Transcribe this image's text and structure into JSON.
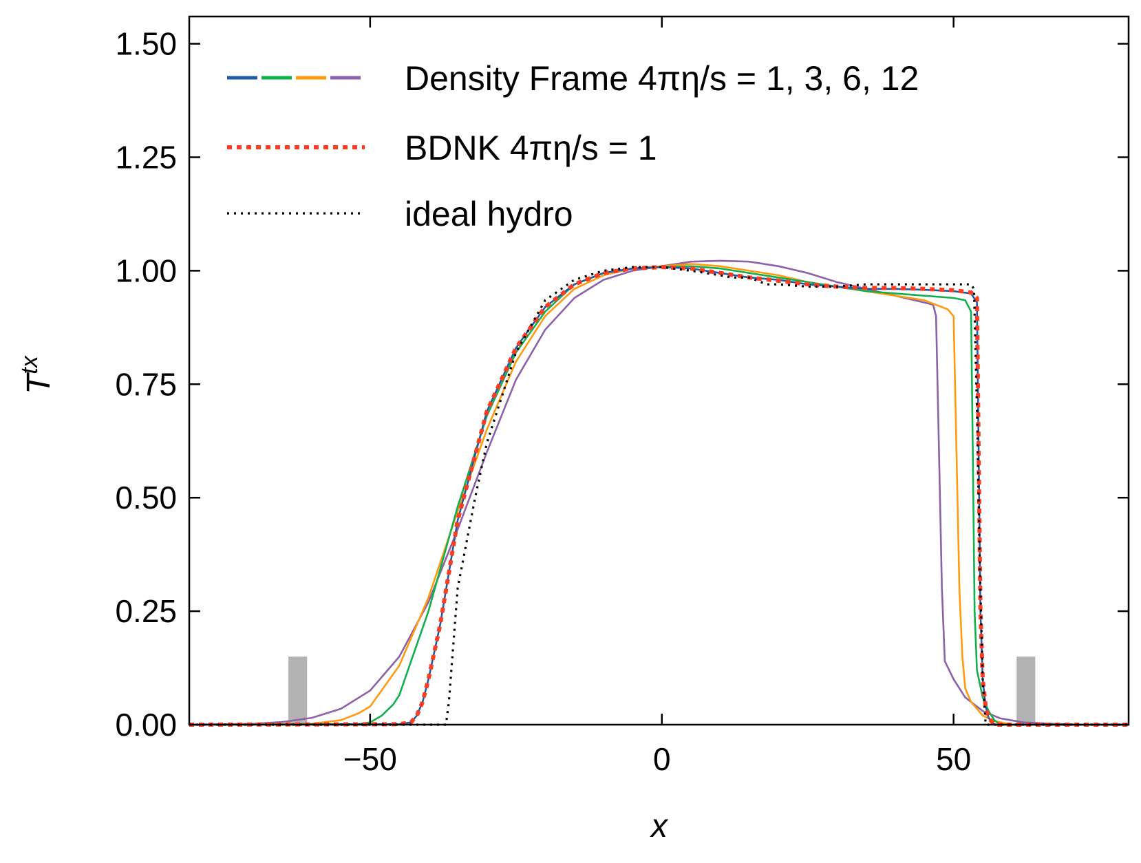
{
  "chart_data": {
    "type": "line",
    "title": "",
    "xlabel": "x",
    "ylabel_base": "T",
    "ylabel_sup": "tx",
    "xlim": [
      -81,
      80
    ],
    "ylim": [
      0,
      1.56
    ],
    "x_ticks": [
      -50,
      0,
      50
    ],
    "x_tick_labels": [
      "−50",
      "0",
      "50"
    ],
    "y_ticks": [
      0,
      0.25,
      0.5,
      0.75,
      1.0,
      1.25,
      1.5
    ],
    "y_tick_labels": [
      "0.00",
      "0.25",
      "0.50",
      "0.75",
      "1.00",
      "1.25",
      "1.50"
    ],
    "grid": false,
    "legend": {
      "placement": "top-left",
      "entries": [
        {
          "label": "Density Frame 4πη/s = 1, 3, 6, 12",
          "colors": [
            "#1f5aa6",
            "#10b14c",
            "#ff9a0f",
            "#8b62a8"
          ],
          "style": "dashed"
        },
        {
          "label": "BDNK 4πη/s = 1",
          "colors": [
            "#ff3c1f"
          ],
          "style": "dotted-thick"
        },
        {
          "label": "ideal hydro",
          "colors": [
            "#000000"
          ],
          "style": "dotted"
        }
      ]
    },
    "shaded_regions": [
      {
        "x0": -64,
        "x1": -60.8,
        "y0": 0,
        "y1": 0.15,
        "color": "#b3b3b3"
      },
      {
        "x0": 60.8,
        "x1": 64,
        "y0": 0,
        "y1": 0.15,
        "color": "#b3b3b3"
      }
    ],
    "series": [
      {
        "name": "Density Frame 4πη/s = 12",
        "color": "#8b62a8",
        "style": "solid",
        "x": [
          -81,
          -70,
          -65,
          -60,
          -55,
          -50,
          -45,
          -40,
          -35,
          -30,
          -25,
          -20,
          -15,
          -10,
          -5,
          0,
          5,
          10,
          15,
          20,
          25,
          30,
          35,
          40,
          45,
          46.5,
          47,
          47.5,
          48,
          48.5,
          50,
          52,
          55,
          58,
          62,
          67,
          72,
          80
        ],
        "y": [
          0,
          0.002,
          0.006,
          0.015,
          0.035,
          0.075,
          0.15,
          0.27,
          0.43,
          0.6,
          0.76,
          0.87,
          0.94,
          0.98,
          1.0,
          1.01,
          1.02,
          1.022,
          1.02,
          1.01,
          0.995,
          0.975,
          0.96,
          0.945,
          0.93,
          0.925,
          0.9,
          0.6,
          0.3,
          0.14,
          0.1,
          0.06,
          0.03,
          0.014,
          0.005,
          0.002,
          0,
          0
        ]
      },
      {
        "name": "Density Frame 4πη/s = 6",
        "color": "#ff9a0f",
        "style": "solid",
        "x": [
          -81,
          -60,
          -55,
          -52,
          -50,
          -45,
          -40,
          -35,
          -30,
          -25,
          -20,
          -15,
          -10,
          -5,
          0,
          5,
          10,
          15,
          20,
          25,
          30,
          35,
          40,
          45,
          49,
          50,
          50.5,
          51,
          51.5,
          52,
          53,
          54,
          55,
          57,
          60,
          80
        ],
        "y": [
          0,
          0.002,
          0.01,
          0.025,
          0.04,
          0.13,
          0.28,
          0.47,
          0.65,
          0.8,
          0.9,
          0.96,
          0.99,
          1.005,
          1.01,
          1.015,
          1.01,
          1.0,
          0.99,
          0.975,
          0.965,
          0.955,
          0.945,
          0.935,
          0.915,
          0.9,
          0.6,
          0.3,
          0.15,
          0.08,
          0.05,
          0.035,
          0.02,
          0.008,
          0,
          0
        ]
      },
      {
        "name": "Density Frame 4πη/s = 3",
        "color": "#10b14c",
        "style": "solid",
        "x": [
          -81,
          -52,
          -50,
          -48,
          -46,
          -45,
          -40,
          -35,
          -30,
          -25,
          -20,
          -15,
          -10,
          -5,
          0,
          5,
          10,
          15,
          20,
          25,
          30,
          35,
          40,
          45,
          50,
          52,
          53,
          53.3,
          53.6,
          54,
          55,
          56,
          57,
          58,
          80
        ],
        "y": [
          0,
          0.001,
          0.005,
          0.02,
          0.045,
          0.065,
          0.25,
          0.48,
          0.68,
          0.82,
          0.91,
          0.97,
          0.995,
          1.005,
          1.008,
          1.01,
          1.005,
          0.995,
          0.985,
          0.975,
          0.965,
          0.955,
          0.95,
          0.945,
          0.94,
          0.935,
          0.91,
          0.6,
          0.25,
          0.12,
          0.06,
          0.03,
          0.01,
          0,
          0
        ]
      },
      {
        "name": "Density Frame 4πη/s = 1",
        "color": "#1f5aa6",
        "style": "solid",
        "x": [
          -81,
          -45,
          -43,
          -42,
          -41,
          -40,
          -38,
          -35,
          -30,
          -25,
          -20,
          -15,
          -10,
          -5,
          0,
          5,
          10,
          15,
          20,
          25,
          30,
          35,
          40,
          45,
          50,
          53,
          54,
          54.3,
          54.6,
          55,
          55.5,
          56,
          57,
          80
        ],
        "y": [
          0,
          0.001,
          0.005,
          0.02,
          0.05,
          0.1,
          0.22,
          0.45,
          0.69,
          0.83,
          0.92,
          0.97,
          0.995,
          1.005,
          1.008,
          1.005,
          0.995,
          0.985,
          0.98,
          0.97,
          0.965,
          0.96,
          0.96,
          0.958,
          0.955,
          0.95,
          0.93,
          0.6,
          0.25,
          0.1,
          0.04,
          0.015,
          0,
          0
        ]
      },
      {
        "name": "BDNK 4πη/s = 1",
        "color": "#ff3c1f",
        "style": "dotted-thick",
        "x": [
          -81,
          -45,
          -43,
          -42,
          -41,
          -40,
          -38,
          -35,
          -30,
          -25,
          -20,
          -15,
          -10,
          -5,
          0,
          5,
          10,
          15,
          20,
          25,
          30,
          35,
          40,
          45,
          50,
          53,
          54,
          54.3,
          54.6,
          55,
          55.5,
          56,
          57,
          80
        ],
        "y": [
          0,
          0.001,
          0.005,
          0.02,
          0.05,
          0.1,
          0.22,
          0.45,
          0.69,
          0.83,
          0.92,
          0.97,
          0.995,
          1.005,
          1.008,
          1.005,
          0.995,
          0.985,
          0.978,
          0.97,
          0.965,
          0.962,
          0.962,
          0.96,
          0.957,
          0.952,
          0.94,
          0.6,
          0.25,
          0.1,
          0.04,
          0.015,
          0,
          0
        ]
      },
      {
        "name": "ideal hydro",
        "color": "#000000",
        "style": "dotted",
        "x": [
          -81,
          -37,
          -36.5,
          -35,
          -32,
          -30,
          -25,
          -20,
          -15,
          -10,
          -5,
          0,
          5,
          10,
          12,
          15,
          18,
          20,
          25,
          30,
          35,
          40,
          45,
          50,
          53,
          53.5,
          54,
          54.5,
          55,
          55.5,
          80
        ],
        "y": [
          0,
          0,
          0.05,
          0.3,
          0.5,
          0.62,
          0.82,
          0.935,
          0.98,
          1.0,
          1.008,
          1.008,
          1.0,
          0.99,
          0.985,
          0.985,
          0.97,
          0.97,
          0.965,
          0.965,
          0.97,
          0.97,
          0.97,
          0.97,
          0.97,
          0.96,
          0.7,
          0.35,
          0.1,
          0,
          0
        ]
      }
    ]
  }
}
